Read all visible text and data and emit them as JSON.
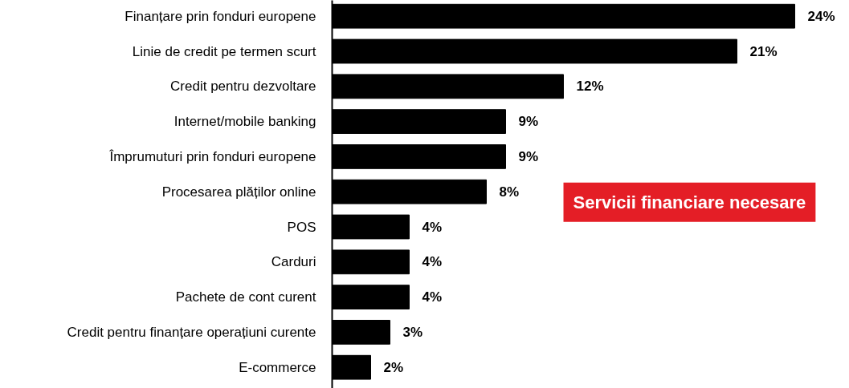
{
  "chart_data": {
    "type": "bar",
    "orientation": "horizontal",
    "categories": [
      "Finanțare prin fonduri europene",
      "Linie de credit pe termen scurt",
      "Credit pentru dezvoltare",
      "Internet/mobile banking",
      "Împrumuturi prin fonduri europene",
      "Procesarea plăților online",
      "POS",
      "Carduri",
      "Pachete de cont curent",
      "Credit pentru finanțare operațiuni curente",
      "E-commerce"
    ],
    "values": [
      24,
      21,
      12,
      9,
      9,
      8,
      4,
      4,
      4,
      3,
      2
    ],
    "value_labels": [
      "24%",
      "21%",
      "12%",
      "9%",
      "9%",
      "8%",
      "4%",
      "4%",
      "4%",
      "3%",
      "2%"
    ],
    "color": "#000000",
    "grid": false,
    "annotations": [
      "Servicii financiare necesare"
    ]
  }
}
